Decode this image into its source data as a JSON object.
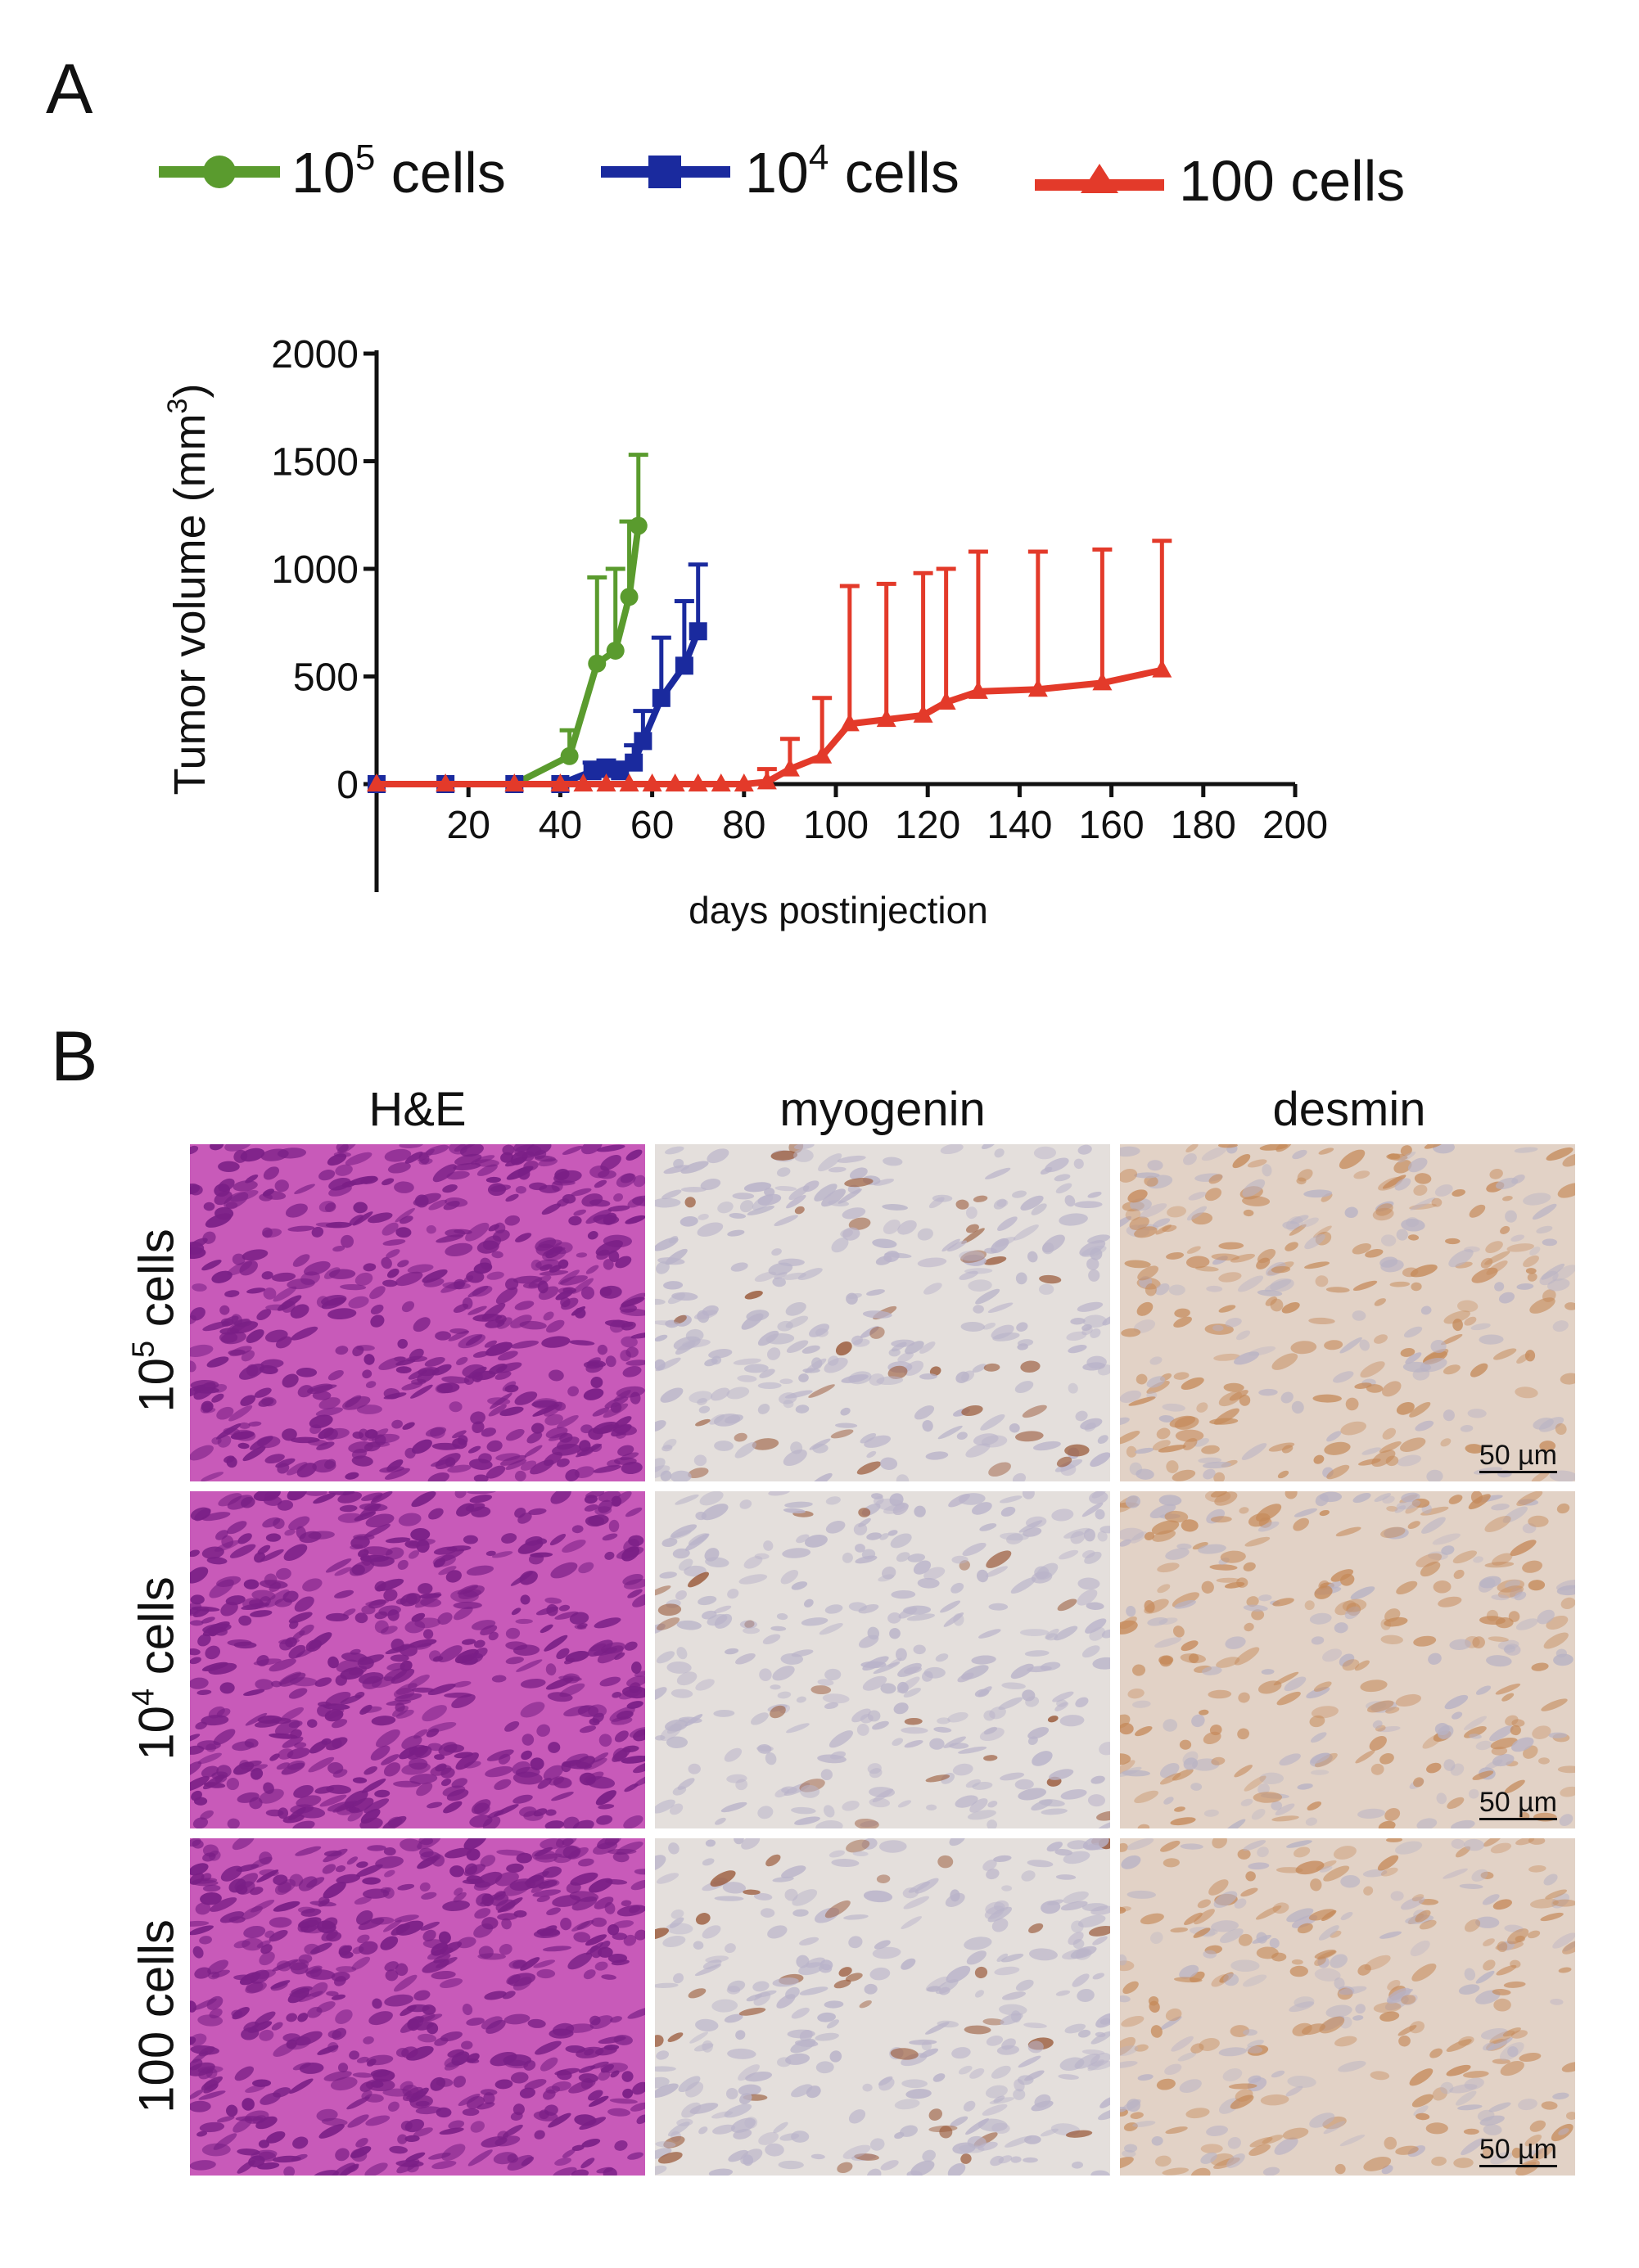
{
  "panel_a": {
    "letter": "A"
  },
  "panel_b": {
    "letter": "B"
  },
  "legend": [
    {
      "base": "10",
      "sup": "5",
      "suffix": " cells",
      "color": "#5a9b2e",
      "marker": "circle"
    },
    {
      "base": "10",
      "sup": "4",
      "suffix": " cells",
      "color": "#1a2a9e",
      "marker": "square"
    },
    {
      "base": "100 cells",
      "sup": "",
      "suffix": "",
      "color": "#e33a2a",
      "marker": "triangle"
    }
  ],
  "chart_data": {
    "type": "line",
    "xlabel": "days postinjection",
    "ylabel": "Tumor volume (mm",
    "ylabel_sup": "3",
    "ylabel_end": ")",
    "xlim": [
      0,
      200
    ],
    "ylim": [
      0,
      2000
    ],
    "xticks": [
      20,
      40,
      60,
      80,
      100,
      120,
      140,
      160,
      180,
      200
    ],
    "yticks": [
      0,
      500,
      1000,
      1500,
      2000
    ],
    "series": [
      {
        "name": "10^5 cells",
        "color": "#5a9b2e",
        "marker": "circle",
        "x": [
          0,
          15,
          30,
          42,
          48,
          52,
          55,
          57
        ],
        "y": [
          0,
          0,
          0,
          130,
          560,
          620,
          870,
          1200
        ],
        "err": [
          0,
          0,
          0,
          120,
          400,
          380,
          350,
          330
        ]
      },
      {
        "name": "10^4 cells",
        "color": "#1a2a9e",
        "marker": "square",
        "x": [
          0,
          15,
          30,
          40,
          47,
          50,
          53,
          56,
          58,
          62,
          67,
          70
        ],
        "y": [
          0,
          0,
          0,
          0,
          60,
          70,
          60,
          100,
          200,
          400,
          550,
          710
        ],
        "err": [
          0,
          0,
          0,
          0,
          40,
          40,
          40,
          80,
          140,
          280,
          300,
          310
        ]
      },
      {
        "name": "100 cells",
        "color": "#e33a2a",
        "marker": "triangle",
        "x": [
          0,
          15,
          30,
          40,
          45,
          50,
          55,
          60,
          65,
          70,
          75,
          80,
          85,
          90,
          97,
          103,
          111,
          119,
          124,
          131,
          144,
          158,
          171
        ],
        "y": [
          0,
          0,
          0,
          0,
          0,
          0,
          0,
          0,
          0,
          0,
          0,
          0,
          10,
          70,
          130,
          280,
          300,
          320,
          380,
          430,
          440,
          470,
          530
        ],
        "err": [
          0,
          0,
          0,
          0,
          0,
          0,
          0,
          0,
          0,
          0,
          0,
          0,
          60,
          140,
          270,
          640,
          630,
          660,
          620,
          650,
          640,
          620,
          600
        ]
      }
    ]
  },
  "histology": {
    "columns": [
      "H&E",
      "myogenin",
      "desmin"
    ],
    "rows": [
      {
        "base": "10",
        "sup": "5",
        "suffix": " cells"
      },
      {
        "base": "10",
        "sup": "4",
        "suffix": " cells"
      },
      {
        "base": "100 cells",
        "sup": "",
        "suffix": ""
      }
    ],
    "scale_bar": "50 µm",
    "stain_colors": {
      "he_background": "#c85ab9",
      "he_nuclei": "#7a1f86",
      "myogenin_background": "#e4dfdc",
      "myogenin_nuclei": "#9a5a3a",
      "desmin_background": "#e2d2c6",
      "desmin_stain": "#c58a5a"
    }
  }
}
